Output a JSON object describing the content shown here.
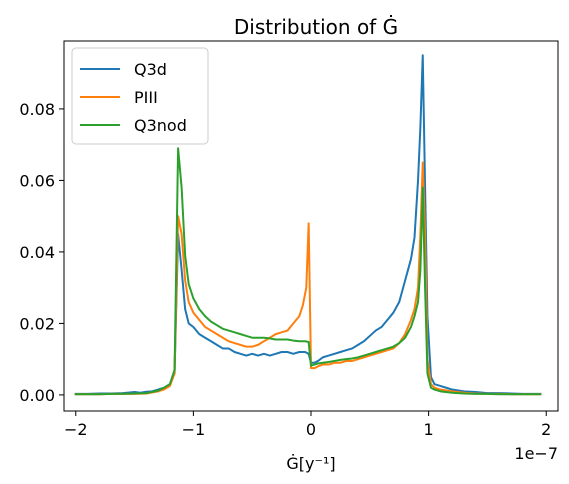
{
  "chart_data": {
    "type": "line",
    "title": "Distribution of Ġ",
    "xlabel": "Ġ[y⁻¹]",
    "ylabel": "",
    "x_offset_label": "1e−7",
    "xlim": [
      -2.1,
      2.1
    ],
    "ylim": [
      -0.0045,
      0.099
    ],
    "x_ticks": [
      -2,
      -1,
      0,
      1,
      2
    ],
    "x_tick_labels": [
      "−2",
      "−1",
      "0",
      "1",
      "2"
    ],
    "y_ticks": [
      0.0,
      0.02,
      0.04,
      0.06,
      0.08
    ],
    "y_tick_labels": [
      "0.00",
      "0.02",
      "0.04",
      "0.06",
      "0.08"
    ],
    "grid": false,
    "legend_position": "top-left",
    "series": [
      {
        "name": "Q3d",
        "color": "#1f77b4",
        "x": [
          -2.0,
          -1.9,
          -1.8,
          -1.7,
          -1.6,
          -1.5,
          -1.45,
          -1.4,
          -1.35,
          -1.3,
          -1.25,
          -1.2,
          -1.16,
          -1.13,
          -1.1,
          -1.07,
          -1.04,
          -1.0,
          -0.95,
          -0.9,
          -0.85,
          -0.8,
          -0.75,
          -0.7,
          -0.65,
          -0.6,
          -0.55,
          -0.5,
          -0.45,
          -0.4,
          -0.35,
          -0.3,
          -0.25,
          -0.2,
          -0.15,
          -0.1,
          -0.05,
          -0.02,
          0.0,
          0.03,
          0.06,
          0.1,
          0.15,
          0.2,
          0.25,
          0.3,
          0.35,
          0.4,
          0.45,
          0.5,
          0.55,
          0.6,
          0.65,
          0.7,
          0.75,
          0.8,
          0.85,
          0.88,
          0.91,
          0.93,
          0.95,
          0.97,
          0.99,
          1.02,
          1.05,
          1.1,
          1.15,
          1.2,
          1.3,
          1.4,
          1.5,
          1.6,
          1.7,
          1.8,
          1.9,
          1.95
        ],
        "values": [
          0.0003,
          0.0003,
          0.0004,
          0.0004,
          0.0005,
          0.0008,
          0.0006,
          0.0009,
          0.001,
          0.0015,
          0.002,
          0.003,
          0.006,
          0.045,
          0.035,
          0.024,
          0.02,
          0.019,
          0.017,
          0.016,
          0.015,
          0.014,
          0.013,
          0.013,
          0.012,
          0.0115,
          0.011,
          0.0115,
          0.011,
          0.0115,
          0.011,
          0.0115,
          0.012,
          0.012,
          0.0115,
          0.012,
          0.012,
          0.0115,
          0.009,
          0.009,
          0.0095,
          0.0105,
          0.011,
          0.0115,
          0.012,
          0.0125,
          0.013,
          0.014,
          0.015,
          0.0165,
          0.018,
          0.019,
          0.021,
          0.023,
          0.026,
          0.032,
          0.038,
          0.044,
          0.06,
          0.075,
          0.095,
          0.058,
          0.022,
          0.005,
          0.003,
          0.0025,
          0.002,
          0.0015,
          0.001,
          0.0008,
          0.0005,
          0.0005,
          0.0004,
          0.0003,
          0.0003,
          0.0003
        ]
      },
      {
        "name": "PIII",
        "color": "#ff7f0e",
        "x": [
          -2.0,
          -1.9,
          -1.8,
          -1.7,
          -1.6,
          -1.5,
          -1.4,
          -1.3,
          -1.25,
          -1.2,
          -1.16,
          -1.13,
          -1.1,
          -1.07,
          -1.04,
          -1.0,
          -0.95,
          -0.9,
          -0.85,
          -0.8,
          -0.75,
          -0.7,
          -0.65,
          -0.6,
          -0.55,
          -0.5,
          -0.45,
          -0.4,
          -0.35,
          -0.3,
          -0.25,
          -0.2,
          -0.15,
          -0.1,
          -0.07,
          -0.04,
          -0.02,
          0.0,
          0.03,
          0.06,
          0.1,
          0.15,
          0.2,
          0.25,
          0.3,
          0.35,
          0.4,
          0.45,
          0.5,
          0.55,
          0.6,
          0.65,
          0.7,
          0.75,
          0.8,
          0.85,
          0.88,
          0.91,
          0.93,
          0.95,
          0.97,
          0.99,
          1.02,
          1.05,
          1.1,
          1.2,
          1.3,
          1.4,
          1.5,
          1.6,
          1.7,
          1.8,
          1.9,
          1.95
        ],
        "values": [
          0.0002,
          0.0002,
          0.0002,
          0.0003,
          0.0003,
          0.0003,
          0.0004,
          0.001,
          0.0015,
          0.0025,
          0.006,
          0.05,
          0.045,
          0.032,
          0.026,
          0.023,
          0.021,
          0.019,
          0.018,
          0.017,
          0.016,
          0.015,
          0.0145,
          0.014,
          0.0135,
          0.0135,
          0.014,
          0.015,
          0.016,
          0.017,
          0.0175,
          0.018,
          0.02,
          0.022,
          0.025,
          0.03,
          0.048,
          0.0075,
          0.0075,
          0.008,
          0.0085,
          0.0085,
          0.009,
          0.009,
          0.0095,
          0.0095,
          0.01,
          0.0105,
          0.011,
          0.0115,
          0.012,
          0.0125,
          0.013,
          0.0145,
          0.017,
          0.021,
          0.024,
          0.03,
          0.045,
          0.065,
          0.045,
          0.01,
          0.003,
          0.002,
          0.0015,
          0.001,
          0.0006,
          0.0004,
          0.0003,
          0.0003,
          0.0002,
          0.0002,
          0.0002,
          0.0002
        ]
      },
      {
        "name": "Q3nod",
        "color": "#2ca02c",
        "x": [
          -2.0,
          -1.9,
          -1.8,
          -1.7,
          -1.6,
          -1.5,
          -1.4,
          -1.3,
          -1.25,
          -1.2,
          -1.16,
          -1.13,
          -1.1,
          -1.07,
          -1.04,
          -1.0,
          -0.95,
          -0.9,
          -0.85,
          -0.8,
          -0.75,
          -0.7,
          -0.65,
          -0.6,
          -0.55,
          -0.5,
          -0.45,
          -0.4,
          -0.35,
          -0.3,
          -0.25,
          -0.2,
          -0.15,
          -0.1,
          -0.05,
          -0.02,
          0.0,
          0.03,
          0.06,
          0.1,
          0.15,
          0.2,
          0.25,
          0.3,
          0.35,
          0.4,
          0.45,
          0.5,
          0.55,
          0.6,
          0.65,
          0.7,
          0.75,
          0.8,
          0.85,
          0.88,
          0.91,
          0.93,
          0.95,
          0.97,
          0.99,
          1.02,
          1.05,
          1.1,
          1.2,
          1.3,
          1.4,
          1.5,
          1.6,
          1.7,
          1.8,
          1.9,
          1.95
        ],
        "values": [
          0.0002,
          0.0002,
          0.0002,
          0.0003,
          0.0003,
          0.0004,
          0.0005,
          0.0012,
          0.002,
          0.003,
          0.007,
          0.069,
          0.058,
          0.039,
          0.031,
          0.027,
          0.024,
          0.022,
          0.0205,
          0.0195,
          0.0185,
          0.018,
          0.0175,
          0.017,
          0.0165,
          0.016,
          0.016,
          0.016,
          0.0158,
          0.0155,
          0.0155,
          0.0155,
          0.0152,
          0.015,
          0.015,
          0.0148,
          0.0082,
          0.0085,
          0.0088,
          0.009,
          0.0092,
          0.0095,
          0.0098,
          0.01,
          0.0102,
          0.0105,
          0.011,
          0.0115,
          0.012,
          0.0125,
          0.013,
          0.0135,
          0.0145,
          0.016,
          0.019,
          0.022,
          0.026,
          0.035,
          0.058,
          0.03,
          0.006,
          0.002,
          0.0015,
          0.001,
          0.0006,
          0.0004,
          0.0003,
          0.0003,
          0.0002,
          0.0002,
          0.0002,
          0.0002,
          0.0002
        ]
      }
    ]
  }
}
